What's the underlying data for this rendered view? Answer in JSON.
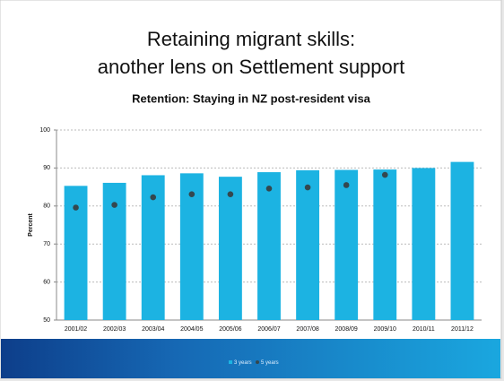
{
  "chart_data": {
    "type": "bar",
    "title": [
      "Retaining migrant skills:",
      "another lens on Settlement support"
    ],
    "subtitle": "Retention: Staying in NZ post-resident visa",
    "y_label": "Percent",
    "categories": [
      "2001/02",
      "2002/03",
      "2003/04",
      "2004/05",
      "2005/06",
      "2006/07",
      "2007/08",
      "2008/09",
      "2009/10",
      "2010/11",
      "2011/12"
    ],
    "series": [
      {
        "name": "3 years",
        "kind": "bar",
        "color": "#1cb3e2",
        "values": [
          85.3,
          86.1,
          88.1,
          88.6,
          87.7,
          88.9,
          89.4,
          89.5,
          89.6,
          90.0,
          91.6
        ]
      },
      {
        "name": "5 years",
        "kind": "point",
        "color": "#34474e",
        "values": [
          79.6,
          80.3,
          82.3,
          83.1,
          83.1,
          84.6,
          84.9,
          85.5,
          88.2,
          null,
          null
        ]
      }
    ],
    "ylim": [
      50,
      100
    ],
    "yticks": [
      50,
      60,
      70,
      80,
      90,
      100
    ],
    "grid": true
  }
}
